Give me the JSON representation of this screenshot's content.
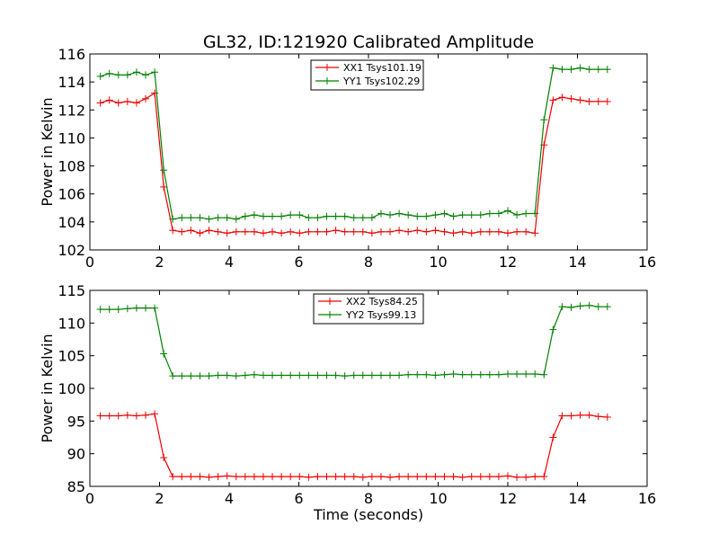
{
  "figure": {
    "title": "GL32, ID:121920 Calibrated Amplitude",
    "xlabel": "Time (seconds)"
  },
  "colors": {
    "red": "#ee0000",
    "green": "#008000"
  },
  "chart_data": [
    {
      "type": "line",
      "title": "GL32, ID:121920 Calibrated Amplitude",
      "xlabel": "",
      "ylabel": "Power in Kelvin",
      "xlim": [
        0,
        16
      ],
      "ylim": [
        102,
        116
      ],
      "xticks": [
        0,
        2,
        4,
        6,
        8,
        10,
        12,
        14,
        16
      ],
      "yticks": [
        102,
        104,
        106,
        108,
        110,
        112,
        114,
        116
      ],
      "legend": "top-center",
      "grid": false,
      "x": [
        0.3,
        0.56,
        0.82,
        1.08,
        1.34,
        1.6,
        1.86,
        2.12,
        2.38,
        2.64,
        2.9,
        3.16,
        3.42,
        3.68,
        3.94,
        4.2,
        4.46,
        4.72,
        4.98,
        5.24,
        5.5,
        5.76,
        6.02,
        6.28,
        6.54,
        6.8,
        7.06,
        7.32,
        7.58,
        7.84,
        8.1,
        8.36,
        8.62,
        8.88,
        9.14,
        9.4,
        9.66,
        9.92,
        10.18,
        10.44,
        10.7,
        10.96,
        11.22,
        11.48,
        11.74,
        12.0,
        12.26,
        12.52,
        12.78,
        13.04,
        13.3,
        13.56,
        13.82,
        14.08,
        14.34,
        14.6,
        14.86
      ],
      "series": [
        {
          "name": "XX1 Tsys101.19",
          "color": "#ee0000",
          "values": [
            112.5,
            112.7,
            112.5,
            112.6,
            112.5,
            112.8,
            113.2,
            106.5,
            103.4,
            103.3,
            103.4,
            103.2,
            103.4,
            103.3,
            103.2,
            103.3,
            103.3,
            103.3,
            103.2,
            103.3,
            103.2,
            103.3,
            103.2,
            103.3,
            103.3,
            103.3,
            103.4,
            103.3,
            103.3,
            103.3,
            103.2,
            103.3,
            103.3,
            103.4,
            103.3,
            103.4,
            103.3,
            103.4,
            103.3,
            103.2,
            103.3,
            103.2,
            103.3,
            103.3,
            103.3,
            103.2,
            103.3,
            103.3,
            103.2,
            109.5,
            112.7,
            112.9,
            112.8,
            112.7,
            112.6,
            112.6,
            112.6
          ]
        },
        {
          "name": "YY1 Tsys102.29",
          "color": "#008000",
          "values": [
            114.4,
            114.6,
            114.5,
            114.5,
            114.7,
            114.5,
            114.7,
            107.7,
            104.2,
            104.3,
            104.3,
            104.3,
            104.2,
            104.3,
            104.3,
            104.2,
            104.4,
            104.5,
            104.4,
            104.4,
            104.4,
            104.5,
            104.5,
            104.3,
            104.3,
            104.4,
            104.4,
            104.4,
            104.3,
            104.3,
            104.3,
            104.6,
            104.5,
            104.6,
            104.5,
            104.4,
            104.4,
            104.5,
            104.6,
            104.4,
            104.5,
            104.5,
            104.5,
            104.6,
            104.6,
            104.8,
            104.5,
            104.6,
            104.6,
            111.3,
            115.0,
            114.9,
            114.9,
            115.0,
            114.9,
            114.9,
            114.9
          ]
        }
      ]
    },
    {
      "type": "line",
      "title": "",
      "xlabel": "Time (seconds)",
      "ylabel": "Power in Kelvin",
      "xlim": [
        0,
        16
      ],
      "ylim": [
        85,
        115
      ],
      "xticks": [
        0,
        2,
        4,
        6,
        8,
        10,
        12,
        14,
        16
      ],
      "yticks": [
        85,
        90,
        95,
        100,
        105,
        110,
        115
      ],
      "legend": "top-center",
      "grid": false,
      "x": [
        0.3,
        0.56,
        0.82,
        1.08,
        1.34,
        1.6,
        1.86,
        2.12,
        2.38,
        2.64,
        2.9,
        3.16,
        3.42,
        3.68,
        3.94,
        4.2,
        4.46,
        4.72,
        4.98,
        5.24,
        5.5,
        5.76,
        6.02,
        6.28,
        6.54,
        6.8,
        7.06,
        7.32,
        7.58,
        7.84,
        8.1,
        8.36,
        8.62,
        8.88,
        9.14,
        9.4,
        9.66,
        9.92,
        10.18,
        10.44,
        10.7,
        10.96,
        11.22,
        11.48,
        11.74,
        12.0,
        12.26,
        12.52,
        12.78,
        13.04,
        13.3,
        13.56,
        13.82,
        14.08,
        14.34,
        14.6,
        14.86
      ],
      "series": [
        {
          "name": "XX2 Tsys84.25",
          "color": "#ee0000",
          "values": [
            95.8,
            95.8,
            95.8,
            95.9,
            95.8,
            95.9,
            96.1,
            89.4,
            86.5,
            86.5,
            86.5,
            86.5,
            86.4,
            86.5,
            86.6,
            86.5,
            86.5,
            86.5,
            86.5,
            86.5,
            86.5,
            86.5,
            86.5,
            86.4,
            86.5,
            86.5,
            86.5,
            86.5,
            86.5,
            86.4,
            86.5,
            86.5,
            86.4,
            86.5,
            86.5,
            86.5,
            86.5,
            86.5,
            86.5,
            86.5,
            86.4,
            86.5,
            86.5,
            86.5,
            86.5,
            86.6,
            86.4,
            86.4,
            86.5,
            86.5,
            92.5,
            95.8,
            95.8,
            95.9,
            95.9,
            95.7,
            95.6
          ]
        },
        {
          "name": "YY2 Tsys99.13",
          "color": "#008000",
          "values": [
            112.1,
            112.1,
            112.1,
            112.2,
            112.3,
            112.3,
            112.3,
            105.3,
            101.9,
            101.9,
            101.9,
            101.9,
            101.9,
            102.0,
            102.0,
            101.9,
            102.0,
            102.1,
            102.0,
            102.0,
            102.0,
            102.0,
            102.0,
            102.0,
            102.0,
            102.0,
            102.0,
            101.9,
            102.0,
            102.0,
            102.0,
            102.0,
            102.0,
            102.0,
            102.1,
            102.1,
            102.1,
            102.0,
            102.1,
            102.2,
            102.1,
            102.1,
            102.1,
            102.1,
            102.1,
            102.2,
            102.2,
            102.2,
            102.2,
            102.1,
            109.0,
            112.5,
            112.4,
            112.6,
            112.7,
            112.5,
            112.5
          ]
        }
      ]
    }
  ]
}
